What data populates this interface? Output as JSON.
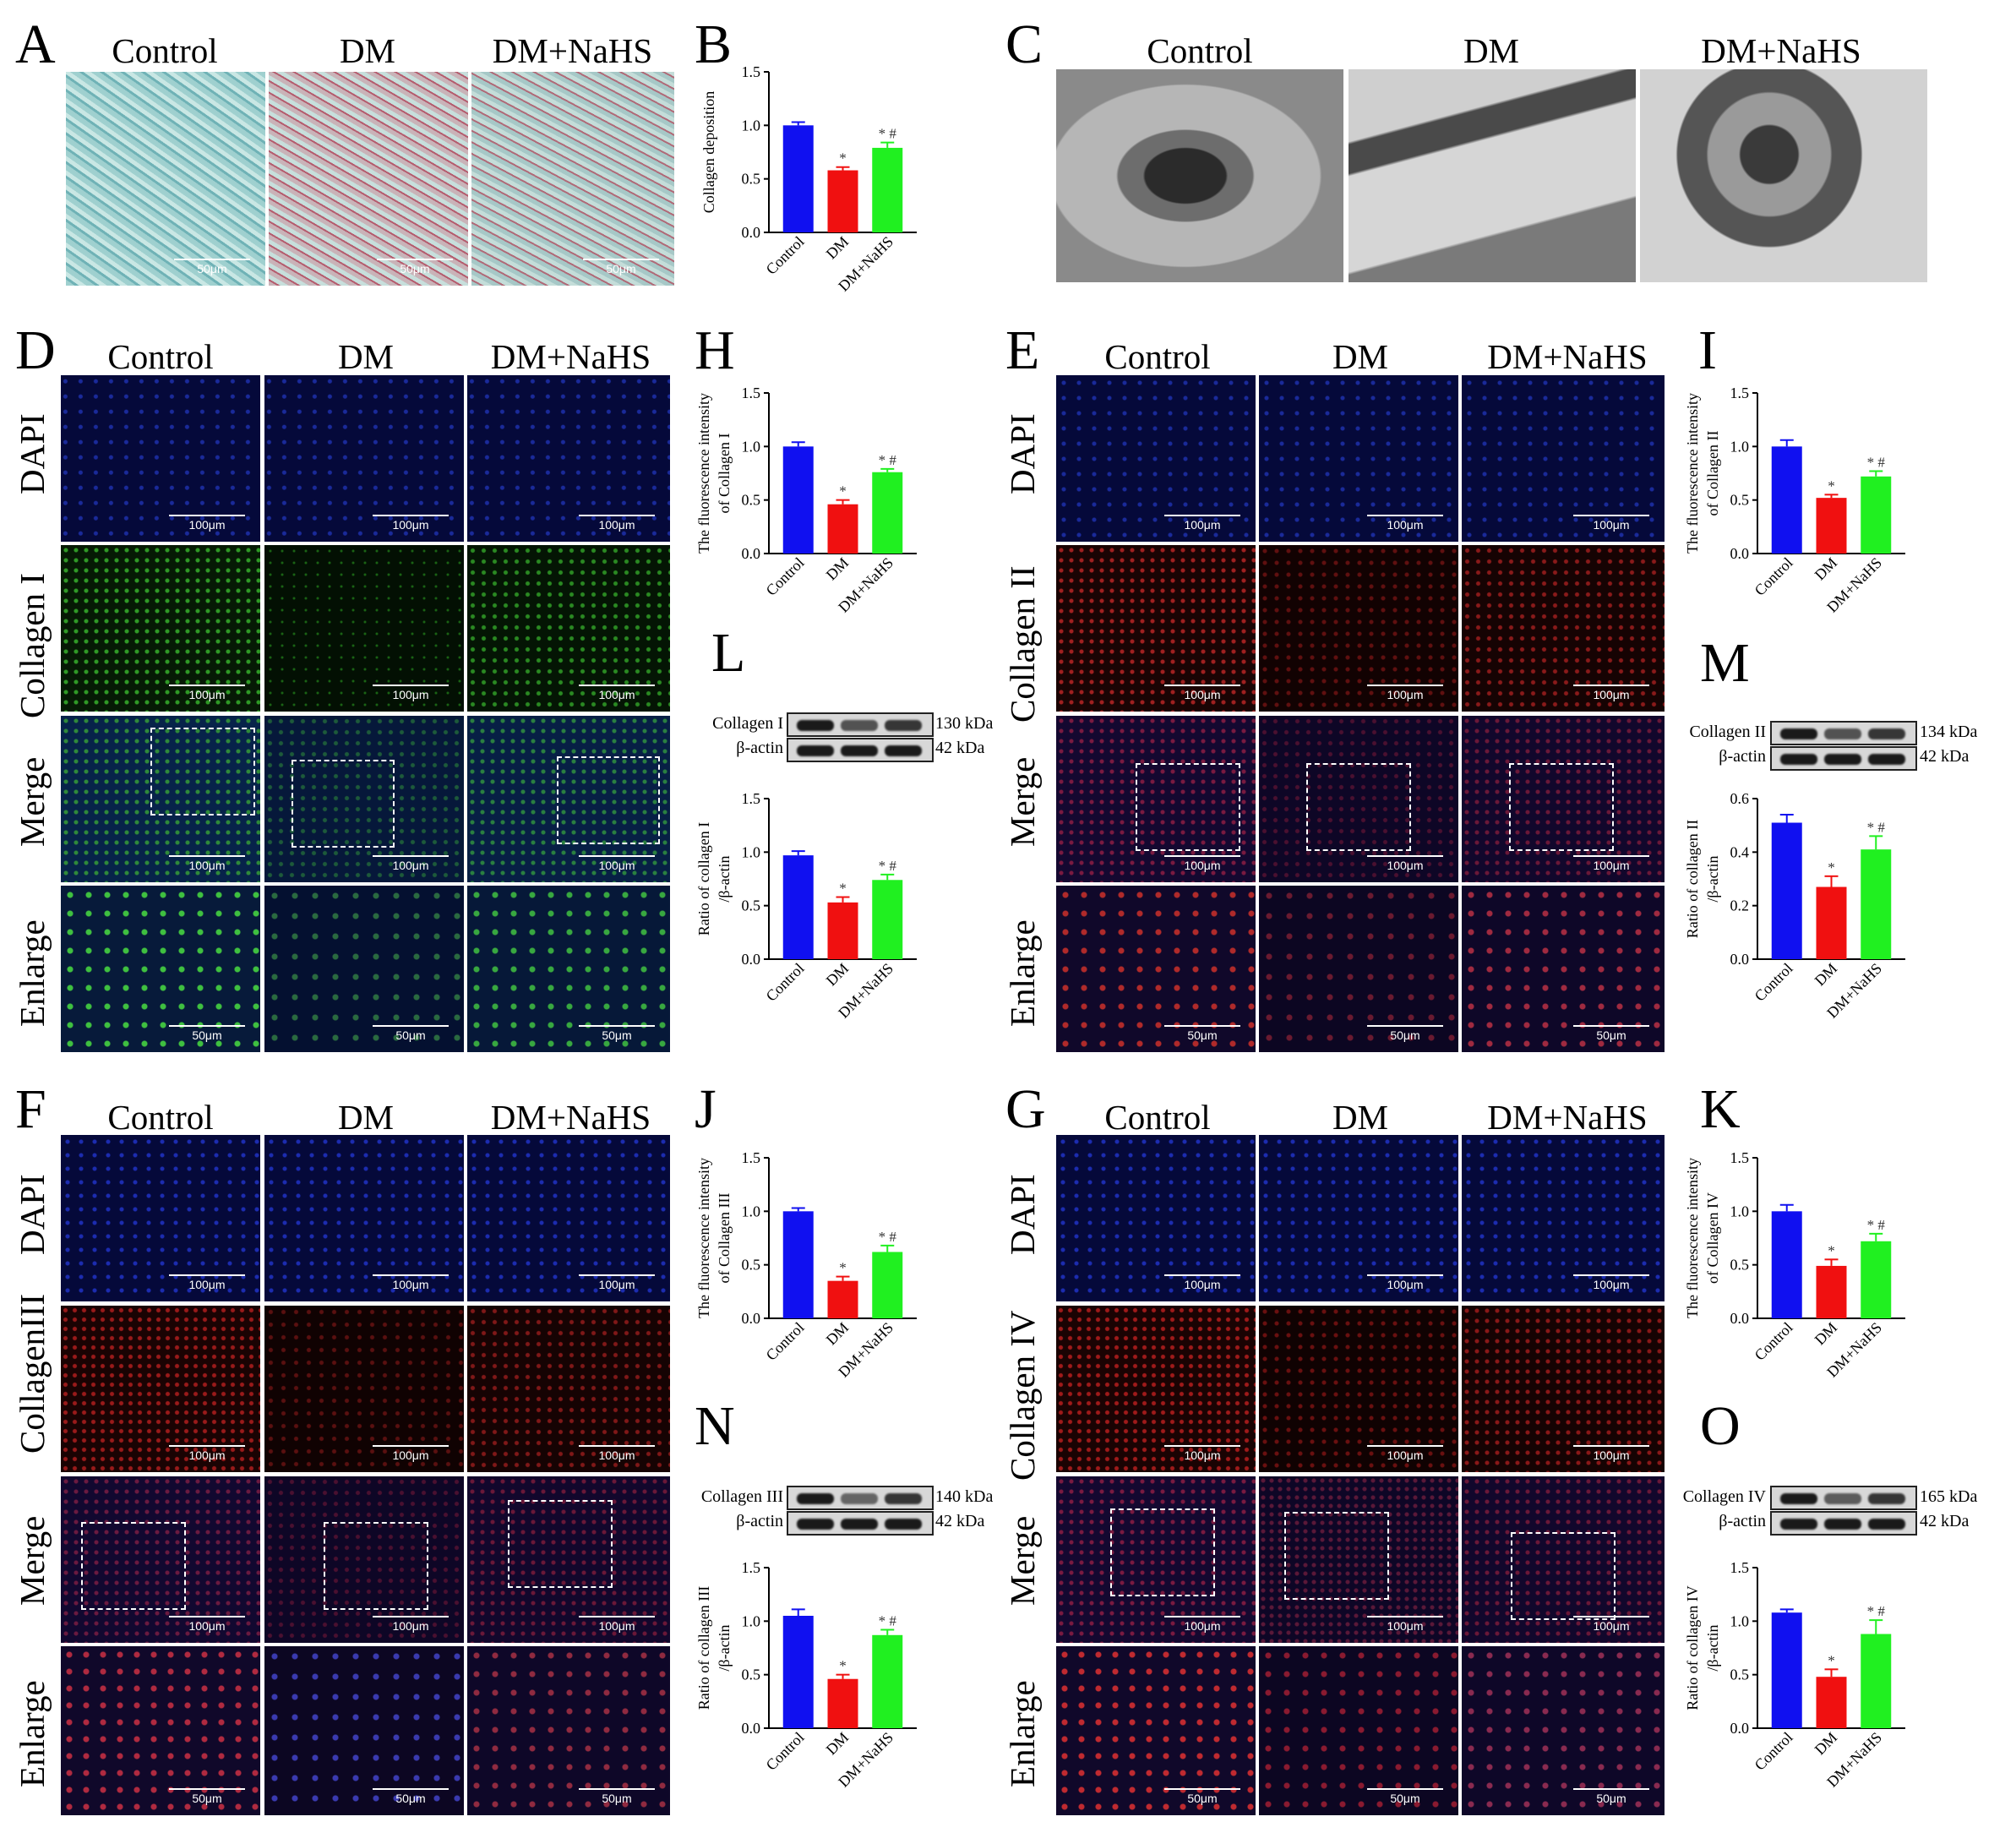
{
  "figure": {
    "groups": [
      "Control",
      "DM",
      "DM+NaHS"
    ],
    "panel_letters": {
      "A": "A",
      "B": "B",
      "C": "C",
      "D": "D",
      "E": "E",
      "F": "F",
      "G": "G",
      "H": "H",
      "I": "I",
      "J": "J",
      "K": "K",
      "L": "L",
      "M": "M",
      "N": "N",
      "O": "O"
    },
    "row_labels": {
      "dapi": "DAPI",
      "col1": "Collagen I",
      "col2": "Collagen II",
      "col3": "CollagenIII",
      "col4": "Collagen IV",
      "merge": "Merge",
      "enlarge": "Enlarge"
    },
    "scale_bars": {
      "s100": "100μm",
      "s50": "50μm",
      "a": "50μm"
    },
    "blots": {
      "L": {
        "protein": "Collagen I",
        "protein_kda": "130 kDa",
        "control": "β-actin",
        "control_kda": "42 kDa"
      },
      "M": {
        "protein": "Collagen II",
        "protein_kda": "134 kDa",
        "control": "β-actin",
        "control_kda": "42 kDa"
      },
      "N": {
        "protein": "Collagen III",
        "protein_kda": "140 kDa",
        "control": "β-actin",
        "control_kda": "42 kDa"
      },
      "O": {
        "protein": "Collagen IV",
        "protein_kda": "165 kDa",
        "control": "β-actin",
        "control_kda": "42 kDa"
      }
    },
    "colors": {
      "control": "#1010f0",
      "dm": "#f01010",
      "nahs": "#20f020"
    }
  },
  "chart_data": [
    {
      "panel": "B",
      "type": "bar",
      "categories": [
        "Control",
        "DM",
        "DM+NaHS"
      ],
      "ylabel": "Collagen deposition",
      "ylim": [
        0,
        1.5
      ],
      "yticks": [
        "0.0",
        "0.5",
        "1.0",
        "1.5"
      ],
      "values": [
        1.0,
        0.58,
        0.79
      ],
      "errors": [
        0.03,
        0.03,
        0.05
      ],
      "annotations": [
        "",
        "*",
        "* #"
      ]
    },
    {
      "panel": "H",
      "type": "bar",
      "categories": [
        "Control",
        "DM",
        "DM+NaHS"
      ],
      "ylabel": [
        "The fluorescence intensity",
        "of Collagen I"
      ],
      "ylim": [
        0,
        1.5
      ],
      "yticks": [
        "0.0",
        "0.5",
        "1.0",
        "1.5"
      ],
      "values": [
        1.0,
        0.46,
        0.76
      ],
      "errors": [
        0.04,
        0.04,
        0.03
      ],
      "annotations": [
        "",
        "*",
        "* #"
      ]
    },
    {
      "panel": "I",
      "type": "bar",
      "categories": [
        "Control",
        "DM",
        "DM+NaHS"
      ],
      "ylabel": [
        "The fluorescence intensity",
        "of Collagen II"
      ],
      "ylim": [
        0,
        1.5
      ],
      "yticks": [
        "0.0",
        "0.5",
        "1.0",
        "1.5"
      ],
      "values": [
        1.0,
        0.52,
        0.72
      ],
      "errors": [
        0.06,
        0.03,
        0.05
      ],
      "annotations": [
        "",
        "*",
        "* #"
      ]
    },
    {
      "panel": "L",
      "type": "bar",
      "categories": [
        "Control",
        "DM",
        "DM+NaHS"
      ],
      "ylabel": [
        "Ratio of collagen I",
        "/β-actin"
      ],
      "ylim": [
        0,
        1.5
      ],
      "yticks": [
        "0.0",
        "0.5",
        "1.0",
        "1.5"
      ],
      "values": [
        0.97,
        0.53,
        0.74
      ],
      "errors": [
        0.04,
        0.05,
        0.05
      ],
      "annotations": [
        "",
        "*",
        "* #"
      ]
    },
    {
      "panel": "M",
      "type": "bar",
      "categories": [
        "Control",
        "DM",
        "DM+NaHS"
      ],
      "ylabel": [
        "Ratio of collagen II",
        "/β-actin"
      ],
      "ylim": [
        0,
        0.6
      ],
      "yticks": [
        "0.0",
        "0.2",
        "0.4",
        "0.6"
      ],
      "values": [
        0.51,
        0.27,
        0.41
      ],
      "errors": [
        0.03,
        0.04,
        0.05
      ],
      "annotations": [
        "",
        "*",
        "* #"
      ]
    },
    {
      "panel": "J",
      "type": "bar",
      "categories": [
        "Control",
        "DM",
        "DM+NaHS"
      ],
      "ylabel": [
        "The fluorescence intensity",
        "of Collagen III"
      ],
      "ylim": [
        0,
        1.5
      ],
      "yticks": [
        "0.0",
        "0.5",
        "1.0",
        "1.5"
      ],
      "values": [
        1.0,
        0.35,
        0.62
      ],
      "errors": [
        0.03,
        0.04,
        0.06
      ],
      "annotations": [
        "",
        "*",
        "* #"
      ]
    },
    {
      "panel": "K",
      "type": "bar",
      "categories": [
        "Control",
        "DM",
        "DM+NaHS"
      ],
      "ylabel": [
        "The fluorescence intensity",
        "of Collagen IV"
      ],
      "ylim": [
        0,
        1.5
      ],
      "yticks": [
        "0.0",
        "0.5",
        "1.0",
        "1.5"
      ],
      "values": [
        1.0,
        0.49,
        0.72
      ],
      "errors": [
        0.06,
        0.06,
        0.07
      ],
      "annotations": [
        "",
        "*",
        "* #"
      ]
    },
    {
      "panel": "N",
      "type": "bar",
      "categories": [
        "Control",
        "DM",
        "DM+NaHS"
      ],
      "ylabel": [
        "Ratio of collagen III",
        "/β-actin"
      ],
      "ylim": [
        0,
        1.5
      ],
      "yticks": [
        "0.0",
        "0.5",
        "1.0",
        "1.5"
      ],
      "values": [
        1.05,
        0.46,
        0.87
      ],
      "errors": [
        0.06,
        0.04,
        0.05
      ],
      "annotations": [
        "",
        "*",
        "* #"
      ]
    },
    {
      "panel": "O",
      "type": "bar",
      "categories": [
        "Control",
        "DM",
        "DM+NaHS"
      ],
      "ylabel": [
        "Ratio of collagen IV",
        "/β-actin"
      ],
      "ylim": [
        0,
        1.5
      ],
      "yticks": [
        "0.0",
        "0.5",
        "1.0",
        "1.5"
      ],
      "values": [
        1.08,
        0.48,
        0.88
      ],
      "errors": [
        0.03,
        0.07,
        0.13
      ],
      "annotations": [
        "",
        "*",
        "* #"
      ]
    }
  ]
}
